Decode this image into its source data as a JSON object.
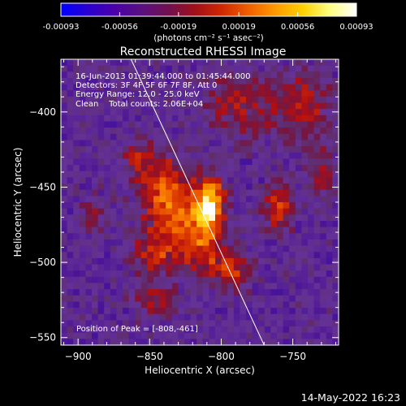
{
  "colorbar": {
    "tick_labels": [
      "-0.00093",
      "-0.00056",
      "-0.00019",
      "0.00019",
      "0.00056",
      "0.00093"
    ],
    "tick_values": [
      -0.00093,
      -0.00056,
      -0.00019,
      0.00019,
      0.00056,
      0.00093
    ],
    "range": [
      -0.00093,
      0.00093
    ],
    "unit_label": "(photons cm⁻² s⁻¹ asec⁻²)"
  },
  "chart_data": {
    "type": "heatmap",
    "title": "Reconstructed RHESSI Image",
    "xlabel": "Heliocentric X (arcsec)",
    "ylabel": "Heliocentric Y (arcsec)",
    "xlim": [
      -912,
      -718
    ],
    "ylim": [
      -555,
      -365
    ],
    "x_ticks": [
      -900,
      -850,
      -800,
      -750
    ],
    "y_ticks": [
      -550,
      -500,
      -450,
      -400
    ],
    "x_tick_labels": [
      "−900",
      "−850",
      "−800",
      "−750"
    ],
    "y_tick_labels": [
      "−550",
      "−500",
      "−450",
      "−400"
    ],
    "annotations": [
      "16-Jun-2013 01:39:44.000 to 01:45:44.000",
      "Detectors: 3F 4F 5F 6F 7F 8F, Att 0",
      "Energy Range: 12.0 - 25.0 keV",
      "Clean    Total counts: 2.06E+04"
    ],
    "peak_label": "Position of Peak = [-808,-461]",
    "peak": [
      -808,
      -461
    ],
    "limb_line": [
      [
        -863,
        -365
      ],
      [
        -770,
        -555
      ]
    ],
    "colormap": [
      "#0000ff",
      "#5a00b4",
      "#7a3aa0",
      "#6a3c8c",
      "#a01030",
      "#d04000",
      "#ff8000",
      "#ffd000",
      "#ffffff"
    ],
    "sources": [
      {
        "x": -808,
        "y": -461,
        "amp": 1.0,
        "sx": 7,
        "sy": 12
      },
      {
        "x": -760,
        "y": -463,
        "amp": 0.62,
        "sx": 7,
        "sy": 10
      },
      {
        "x": -840,
        "y": -448,
        "amp": 0.55,
        "sx": 12,
        "sy": 14
      },
      {
        "x": -830,
        "y": -470,
        "amp": 0.6,
        "sx": 14,
        "sy": 12
      },
      {
        "x": -815,
        "y": -492,
        "amp": 0.55,
        "sx": 14,
        "sy": 12
      },
      {
        "x": -848,
        "y": -495,
        "amp": 0.45,
        "sx": 10,
        "sy": 10
      },
      {
        "x": -792,
        "y": -508,
        "amp": 0.45,
        "sx": 9,
        "sy": 8
      },
      {
        "x": -858,
        "y": -430,
        "amp": 0.35,
        "sx": 8,
        "sy": 10
      },
      {
        "x": -790,
        "y": -395,
        "amp": 0.4,
        "sx": 16,
        "sy": 14
      },
      {
        "x": -745,
        "y": -395,
        "amp": 0.45,
        "sx": 14,
        "sy": 16
      },
      {
        "x": -730,
        "y": -440,
        "amp": 0.35,
        "sx": 8,
        "sy": 10
      },
      {
        "x": -890,
        "y": -470,
        "amp": 0.3,
        "sx": 6,
        "sy": 8
      },
      {
        "x": -845,
        "y": -525,
        "amp": 0.35,
        "sx": 10,
        "sy": 8
      }
    ],
    "grid": false
  },
  "footer": {
    "timestamp": "14-May-2022 16:23"
  }
}
